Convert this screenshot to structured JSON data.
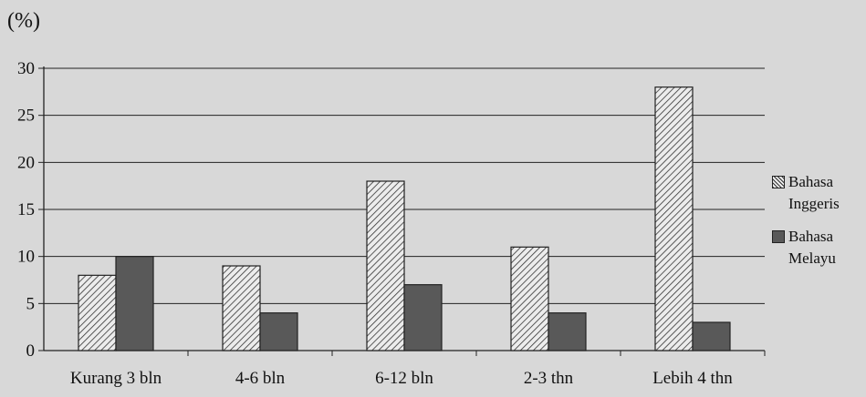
{
  "chart_data": {
    "type": "bar",
    "title": "",
    "unit_label": "(%)",
    "xlabel": "",
    "ylabel": "",
    "ylim": [
      0,
      30
    ],
    "yticks": [
      "0",
      "5",
      "10",
      "15",
      "20",
      "25",
      "30"
    ],
    "categories": [
      "Kurang 3 bln",
      "4-6 bln",
      "6-12 bln",
      "2-3 thn",
      "Lebih 4 thn"
    ],
    "series": [
      {
        "name": "Bahasa Inggeris",
        "values": [
          8,
          9,
          18,
          11,
          28
        ],
        "color": "#e6e6e6",
        "pattern": "diagonal-hatch"
      },
      {
        "name": "Bahasa Melayu",
        "values": [
          10,
          4,
          7,
          4,
          3
        ],
        "color": "#595959",
        "pattern": "solid"
      }
    ],
    "grid": true,
    "legend_position": "right"
  }
}
